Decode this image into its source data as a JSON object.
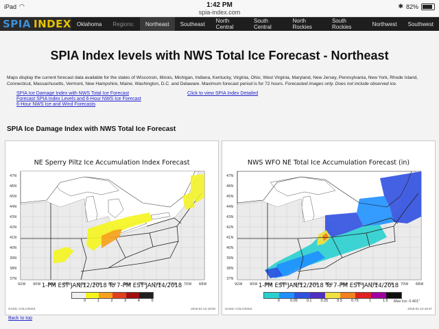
{
  "status_bar": {
    "device": "iPad",
    "time": "1:42 PM",
    "url": "spia-index.com",
    "battery": "82%"
  },
  "nav": {
    "logo_part1": "SPIA",
    "logo_part2": "INDEX",
    "items": [
      {
        "label": "Oklahoma"
      },
      {
        "label": "Regions:"
      },
      {
        "label": "Northeast"
      },
      {
        "label": "Southeast"
      },
      {
        "label": "North Central"
      },
      {
        "label": "South Central"
      },
      {
        "label": "North Rockies"
      },
      {
        "label": "South Rockies"
      },
      {
        "label": "Northwest"
      },
      {
        "label": "Southwest"
      }
    ]
  },
  "page": {
    "title": "SPIA Index levels with NWS Total Ice Forecast - Northeast",
    "intro": "Maps display the current forecast data available for the states of Wisconsin, Illinois, Michigan, Indiana, Kentucky, Virginia, Ohio, West Virginia, Maryland, New Jersey, Pennsylvania, New York, Rhode Island, Connecticut, Massachusetts, Vermont, New Hampshire, Maine, Washington, D.C. and Delaware. Maximum forecast period is for 72 hours.",
    "intro_note": "Forecasted images only. Does not include observed ice.",
    "links": [
      "SPIA Ice Damage Index with NWS Total Ice Forecast",
      "Forecast SPIA Index Levels and 6-Hour NWS Ice Forecast",
      "6-Hour NWS Ice and Wind Forecasts"
    ],
    "detail_link": "Click to view SPIA Index Detailed",
    "section_title": "SPIA Ice Damage Index with NWS Total Ice Forecast",
    "back_to_top": "Back to top"
  },
  "maps": {
    "left": {
      "title": "NE Sperry Piltz Ice Accumulation Index Forecast",
      "time_range": "1-PM EST JAN/12/2018 To 7-PM EST JAN/14/2018",
      "legend_labels": [
        "0",
        "1",
        "2",
        "3",
        "4",
        "5"
      ],
      "legend_colors": [
        "#f0f0f0",
        "#f5f51e",
        "#f5a01e",
        "#e0401e",
        "#a01010",
        "#202020"
      ],
      "credit": "GADS: COLA/IGES",
      "stamp": "2018-01-12-18:00"
    },
    "right": {
      "title": "NWS WFO NE Total Ice Accumulation Forecast (in)",
      "time_range": "1-PM EST JAN/12/2018 To 7-PM EST JAN/14/2018",
      "legend_labels": [
        "0",
        "0.05",
        "0.1",
        "0.25",
        "0.5",
        "0.75",
        "1",
        "1.5"
      ],
      "legend_colors": [
        "#2ad0d0",
        "#1e90ff",
        "#3050e0",
        "#5030c0",
        "#f0e040",
        "#f08020",
        "#e02020",
        "#a000a0",
        "#101010"
      ],
      "max_ice": "Max Ice: 0.401\"",
      "credit": "GADS: COLA/IGES",
      "stamp": "2018-01-12-18:47"
    },
    "latitudes": [
      "47N",
      "46N",
      "45N",
      "44N",
      "43N",
      "42N",
      "41N",
      "40N",
      "39N",
      "38N",
      "37N"
    ],
    "longitudes": [
      "92W",
      "90W",
      "88W",
      "86W",
      "84W",
      "82W",
      "80W",
      "78W",
      "76W",
      "74W",
      "72W",
      "70W",
      "68W"
    ]
  },
  "colors": {
    "nav_bg": "#1e1e1e",
    "link": "#2222cc",
    "ice_yellow": "#f5f51e",
    "ice_orange": "#f5a01e",
    "ice_cyan": "#2ad0d0",
    "ice_blue": "#1e90ff",
    "ice_navy": "#3050e0"
  }
}
